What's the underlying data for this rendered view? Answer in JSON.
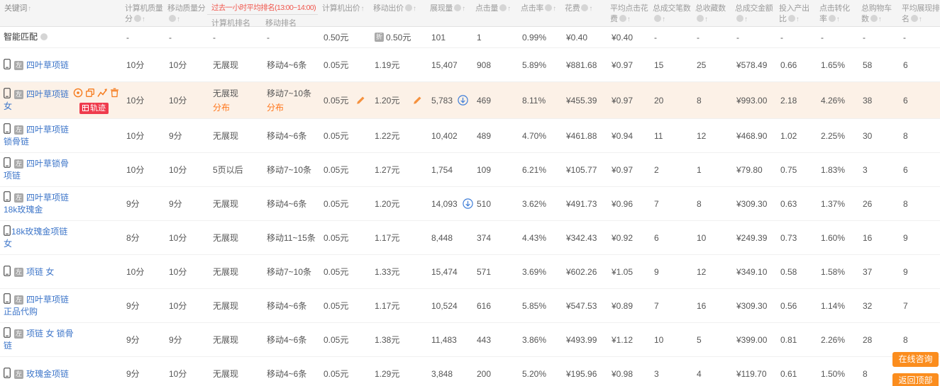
{
  "table": {
    "headers": {
      "keyword": "关键词",
      "pc_score": "计算机质量分",
      "mobile_score": "移动质量分",
      "rank_group_title": "过去一小时平均排名(13:00~14:00)",
      "pc_rank": "计算机排名",
      "mobile_rank": "移动排名",
      "pc_bid": "计算机出价",
      "mobile_bid": "移动出价",
      "impressions": "展现量",
      "clicks": "点击量",
      "ctr": "点击率",
      "cost": "花费",
      "avg_cpc": "平均点击花费",
      "orders": "总成交笔数",
      "favorites": "总收藏数",
      "gmv": "总成交金额",
      "roi": "投入产出比",
      "cvr": "点击转化率",
      "carts": "总购物车数",
      "avg_rank": "平均展现排名"
    },
    "smart_match": {
      "label": "智能匹配",
      "pc_score": "-",
      "mobile_score": "-",
      "pc_rank": "-",
      "mobile_rank": "-",
      "pc_bid": "0.50元",
      "mobile_bid": "0.50元",
      "impressions": "101",
      "clicks": "1",
      "ctr": "0.99%",
      "cost": "¥0.40",
      "avg_cpc": "¥0.40",
      "orders": "-",
      "favorites": "-",
      "gmv": "-",
      "roi": "-",
      "cvr": "-",
      "carts": "-",
      "avg_rank": "-"
    },
    "rows": [
      {
        "keyword": "四叶草项链",
        "tag": true,
        "pc_score": "10分",
        "mobile_score": "10分",
        "pc_rank": "无展现",
        "mobile_rank": "移动4~6条",
        "pc_bid": "0.05元",
        "mobile_bid": "1.19元",
        "impressions": "15,407",
        "clicks": "908",
        "ctr": "5.89%",
        "cost": "¥881.68",
        "avg_cpc": "¥0.97",
        "orders": "15",
        "favorites": "25",
        "gmv": "¥578.49",
        "roi": "0.66",
        "cvr": "1.65%",
        "carts": "58",
        "avg_rank": "6"
      },
      {
        "keyword": "四叶草项链 女",
        "tag": true,
        "hover": true,
        "rank_links": true,
        "bid_edit": true,
        "trend": true,
        "pc_score": "10分",
        "mobile_score": "10分",
        "pc_rank": "无展现",
        "mobile_rank": "移动7~10条",
        "pc_bid": "0.05元",
        "mobile_bid": "1.20元",
        "impressions": "5,783",
        "clicks": "469",
        "ctr": "8.11%",
        "cost": "¥455.39",
        "avg_cpc": "¥0.97",
        "orders": "20",
        "favorites": "8",
        "gmv": "¥993.00",
        "roi": "2.18",
        "cvr": "4.26%",
        "carts": "38",
        "avg_rank": "6"
      },
      {
        "keyword": "四叶草项链 锁骨链",
        "tag": true,
        "pc_score": "10分",
        "mobile_score": "9分",
        "pc_rank": "无展现",
        "mobile_rank": "移动4~6条",
        "pc_bid": "0.05元",
        "mobile_bid": "1.22元",
        "impressions": "10,402",
        "clicks": "489",
        "ctr": "4.70%",
        "cost": "¥461.88",
        "avg_cpc": "¥0.94",
        "orders": "11",
        "favorites": "12",
        "gmv": "¥468.90",
        "roi": "1.02",
        "cvr": "2.25%",
        "carts": "30",
        "avg_rank": "8"
      },
      {
        "keyword": "四叶草锁骨项链",
        "tag": true,
        "pc_score": "10分",
        "mobile_score": "10分",
        "pc_rank": "5页以后",
        "mobile_rank": "移动7~10条",
        "pc_bid": "0.05元",
        "mobile_bid": "1.27元",
        "impressions": "1,754",
        "clicks": "109",
        "ctr": "6.21%",
        "cost": "¥105.77",
        "avg_cpc": "¥0.97",
        "orders": "2",
        "favorites": "1",
        "gmv": "¥79.80",
        "roi": "0.75",
        "cvr": "1.83%",
        "carts": "3",
        "avg_rank": "6"
      },
      {
        "keyword": "四叶草项链18k玫瑰金",
        "tag": true,
        "trend": true,
        "pc_score": "9分",
        "mobile_score": "9分",
        "pc_rank": "无展现",
        "mobile_rank": "移动4~6条",
        "pc_bid": "0.05元",
        "mobile_bid": "1.20元",
        "impressions": "14,093",
        "clicks": "510",
        "ctr": "3.62%",
        "cost": "¥491.73",
        "avg_cpc": "¥0.96",
        "orders": "7",
        "favorites": "8",
        "gmv": "¥309.30",
        "roi": "0.63",
        "cvr": "1.37%",
        "carts": "26",
        "avg_rank": "8"
      },
      {
        "keyword": "18k玫瑰金项链 女",
        "tag": false,
        "pc_score": "8分",
        "mobile_score": "10分",
        "pc_rank": "无展现",
        "mobile_rank": "移动11~15条",
        "pc_bid": "0.05元",
        "mobile_bid": "1.17元",
        "impressions": "8,448",
        "clicks": "374",
        "ctr": "4.43%",
        "cost": "¥342.43",
        "avg_cpc": "¥0.92",
        "orders": "6",
        "favorites": "10",
        "gmv": "¥249.39",
        "roi": "0.73",
        "cvr": "1.60%",
        "carts": "16",
        "avg_rank": "9"
      },
      {
        "keyword": "项链 女",
        "tag": true,
        "pc_score": "10分",
        "mobile_score": "10分",
        "pc_rank": "无展现",
        "mobile_rank": "移动7~10条",
        "pc_bid": "0.05元",
        "mobile_bid": "1.33元",
        "impressions": "15,474",
        "clicks": "571",
        "ctr": "3.69%",
        "cost": "¥602.26",
        "avg_cpc": "¥1.05",
        "orders": "9",
        "favorites": "12",
        "gmv": "¥349.10",
        "roi": "0.58",
        "cvr": "1.58%",
        "carts": "37",
        "avg_rank": "9"
      },
      {
        "keyword": "四叶草项链 正品代购",
        "tag": true,
        "pc_score": "9分",
        "mobile_score": "10分",
        "pc_rank": "无展现",
        "mobile_rank": "移动4~6条",
        "pc_bid": "0.05元",
        "mobile_bid": "1.17元",
        "impressions": "10,524",
        "clicks": "616",
        "ctr": "5.85%",
        "cost": "¥547.53",
        "avg_cpc": "¥0.89",
        "orders": "7",
        "favorites": "16",
        "gmv": "¥309.30",
        "roi": "0.56",
        "cvr": "1.14%",
        "carts": "32",
        "avg_rank": "7"
      },
      {
        "keyword": "项链 女 锁骨链",
        "tag": true,
        "pc_score": "9分",
        "mobile_score": "9分",
        "pc_rank": "无展现",
        "mobile_rank": "移动4~6条",
        "pc_bid": "0.05元",
        "mobile_bid": "1.38元",
        "impressions": "11,483",
        "clicks": "443",
        "ctr": "3.86%",
        "cost": "¥493.99",
        "avg_cpc": "¥1.12",
        "orders": "10",
        "favorites": "5",
        "gmv": "¥399.00",
        "roi": "0.81",
        "cvr": "2.26%",
        "carts": "28",
        "avg_rank": "8"
      },
      {
        "keyword": "玫瑰金项链",
        "tag": true,
        "pc_score": "9分",
        "mobile_score": "10分",
        "pc_rank": "无展现",
        "mobile_rank": "移动4~6条",
        "pc_bid": "0.05元",
        "mobile_bid": "1.29元",
        "impressions": "3,848",
        "clicks": "200",
        "ctr": "5.20%",
        "cost": "¥195.96",
        "avg_cpc": "¥0.98",
        "orders": "3",
        "favorites": "4",
        "gmv": "¥119.70",
        "roi": "0.61",
        "cvr": "1.50%",
        "carts": "8",
        "avg_rank": ""
      }
    ]
  },
  "badges": {
    "keyword_tag": "左",
    "discount": "折",
    "track": "轨迹",
    "distribution": "分布"
  },
  "floating": {
    "online_consult": "在线咨询",
    "back_to_top": "返回顶部"
  },
  "colors": {
    "link_blue": "#3e76c9",
    "highlight_row": "#fcf1e7",
    "accent_orange": "#ff7519",
    "header_red": "#f0574d",
    "track_badge_red": "#ef3b4c",
    "float_button_orange": "#fb8d1e"
  }
}
